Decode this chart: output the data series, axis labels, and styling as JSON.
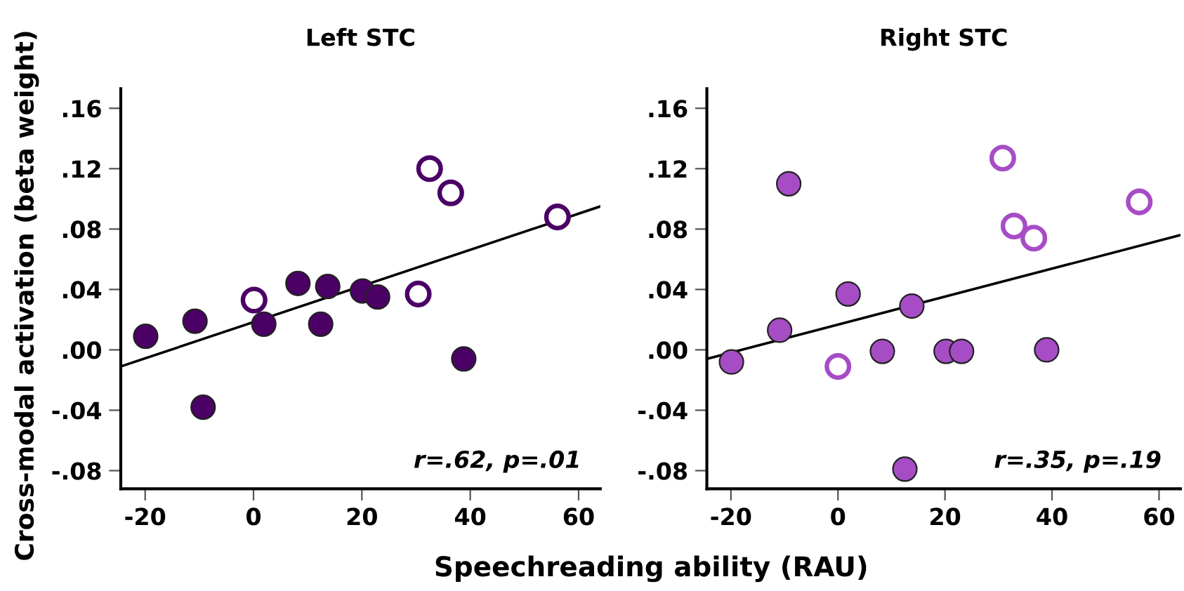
{
  "chart_data": [
    {
      "type": "scatter",
      "title": "Left STC",
      "xlabel": "Speechreading ability (RAU)",
      "ylabel": "Cross-modal activation (beta weight)",
      "annotations": [
        "r=.62, p=.01"
      ],
      "xlim": [
        -24.5,
        64
      ],
      "ylim": [
        -0.092,
        0.173
      ],
      "xticks": [
        {
          "value": -20,
          "label": "-20"
        },
        0,
        20,
        40,
        60
      ],
      "yticks": [
        {
          "value": -0.08,
          "label": "-.08"
        },
        {
          "value": -0.04,
          "label": "-.04"
        },
        {
          "value": 0,
          "label": ".00"
        },
        {
          "value": 0.04,
          "label": ".04"
        },
        {
          "value": 0.08,
          "label": ".08"
        },
        {
          "value": 0.12,
          "label": ".12"
        },
        {
          "value": 0.16,
          "label": ".16"
        }
      ],
      "grid": false,
      "legend": false,
      "series": [
        {
          "type": "scatter",
          "marker": "circle",
          "color": "#4b0066",
          "x": [
            -19.9,
            -10.8,
            -9.3,
            1.9,
            8.2,
            12.4,
            13.7,
            20.1,
            22.9,
            38.8
          ],
          "values": [
            0.009,
            0.019,
            -0.038,
            0.017,
            0.044,
            0.017,
            0.042,
            0.039,
            0.035,
            -0.006
          ]
        },
        {
          "type": "scatter",
          "marker": "circle-open",
          "color": "#4b0066",
          "x": [
            0.1,
            30.4,
            32.5,
            36.4,
            56.1
          ],
          "values": [
            0.033,
            0.037,
            0.12,
            0.104,
            0.088
          ]
        },
        {
          "type": "line",
          "color": "#000000",
          "line_style": "solid",
          "x": [
            -24.5,
            64
          ],
          "values": [
            -0.011,
            0.095
          ]
        }
      ]
    },
    {
      "type": "scatter",
      "title": "Right STC",
      "annotations": [
        "r=.35, p=.19"
      ],
      "xlim": [
        -24.5,
        64
      ],
      "ylim": [
        -0.092,
        0.173
      ],
      "xticks": [
        {
          "value": -20,
          "label": "-20"
        },
        0,
        20,
        40,
        60
      ],
      "yticks": [
        {
          "value": -0.08,
          "label": "-.08"
        },
        {
          "value": -0.04,
          "label": "-.04"
        },
        {
          "value": 0,
          "label": ".00"
        },
        {
          "value": 0.04,
          "label": ".04"
        },
        {
          "value": 0.08,
          "label": ".08"
        },
        {
          "value": 0.12,
          "label": ".12"
        },
        {
          "value": 0.16,
          "label": ".16"
        }
      ],
      "grid": false,
      "legend": false,
      "series": [
        {
          "type": "scatter",
          "marker": "circle",
          "color": "#a64dc6",
          "x": [
            -19.9,
            -10.9,
            -9.2,
            1.9,
            8.3,
            12.5,
            13.8,
            20.2,
            23.1,
            39.0
          ],
          "values": [
            -0.008,
            0.013,
            0.11,
            0.037,
            -0.001,
            -0.079,
            0.029,
            -0.001,
            -0.001,
            0.0
          ]
        },
        {
          "type": "scatter",
          "marker": "circle-open",
          "color": "#a64dc6",
          "x": [
            0.0,
            30.8,
            32.9,
            36.6,
            56.3
          ],
          "values": [
            -0.011,
            0.127,
            0.082,
            0.074,
            0.098
          ]
        },
        {
          "type": "line",
          "color": "#000000",
          "line_style": "solid",
          "x": [
            -24.5,
            64
          ],
          "values": [
            -0.006,
            0.076
          ]
        }
      ]
    }
  ]
}
